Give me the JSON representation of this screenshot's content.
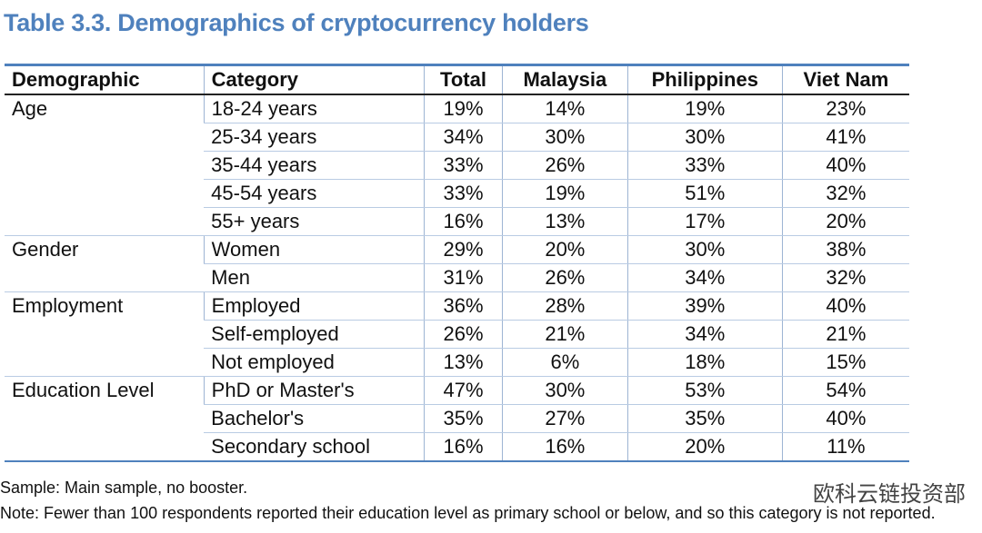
{
  "title": "Table 3.3. Demographics of cryptocurrency holders",
  "table": {
    "header": [
      "Demographic",
      "Category",
      "Total",
      "Malaysia",
      "Philippines",
      "Viet Nam"
    ],
    "groups": [
      {
        "label": "Age",
        "rows": [
          [
            "18-24 years",
            "19%",
            "14%",
            "19%",
            "23%"
          ],
          [
            "25-34 years",
            "34%",
            "30%",
            "30%",
            "41%"
          ],
          [
            "35-44 years",
            "33%",
            "26%",
            "33%",
            "40%"
          ],
          [
            "45-54 years",
            "33%",
            "19%",
            "51%",
            "32%"
          ],
          [
            "55+ years",
            "16%",
            "13%",
            "17%",
            "20%"
          ]
        ]
      },
      {
        "label": "Gender",
        "rows": [
          [
            "Women",
            "29%",
            "20%",
            "30%",
            "38%"
          ],
          [
            "Men",
            "31%",
            "26%",
            "34%",
            "32%"
          ]
        ]
      },
      {
        "label": "Employment",
        "rows": [
          [
            "Employed",
            "36%",
            "28%",
            "39%",
            "40%"
          ],
          [
            "Self-employed",
            "26%",
            "21%",
            "34%",
            "21%"
          ],
          [
            "Not employed",
            "13%",
            "6%",
            "18%",
            "15%"
          ]
        ]
      },
      {
        "label": "Education Level",
        "rows": [
          [
            "PhD or Master's",
            "47%",
            "30%",
            "53%",
            "54%"
          ],
          [
            "Bachelor's",
            "35%",
            "27%",
            "35%",
            "40%"
          ],
          [
            "Secondary school",
            "16%",
            "16%",
            "20%",
            "11%"
          ]
        ]
      }
    ]
  },
  "notes": [
    "Sample: Main sample, no booster.",
    "Note: Fewer than 100 respondents reported their education level as primary school or below, and so this category is not reported."
  ],
  "watermark": "欧科云链投资部"
}
